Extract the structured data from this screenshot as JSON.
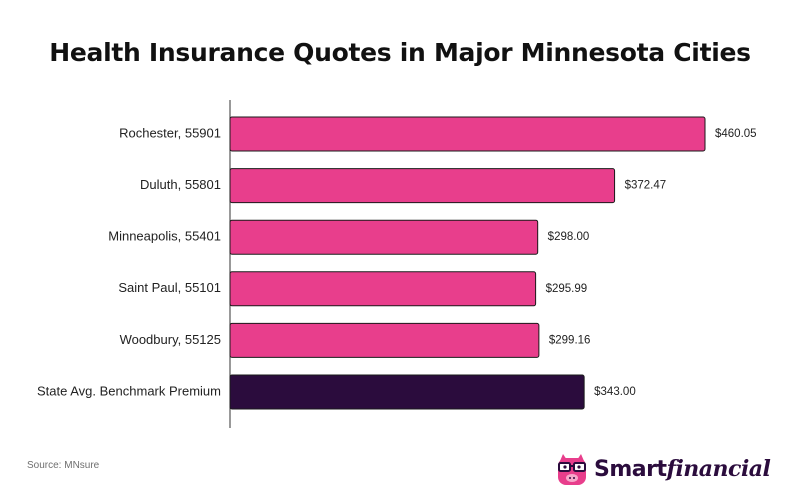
{
  "chart_data": {
    "type": "bar",
    "orientation": "horizontal",
    "title": "Health Insurance Quotes in Major Minnesota Cities",
    "categories": [
      "Rochester, 55901",
      "Duluth, 55801",
      "Minneapolis, 55401",
      "Saint Paul, 55101",
      "Woodbury, 55125",
      "State Avg. Benchmark Premium"
    ],
    "values": [
      460.05,
      372.47,
      298.0,
      295.99,
      299.16,
      343.0
    ],
    "value_labels": [
      "$460.05",
      "$372.47",
      "$298.00",
      "$295.99",
      "$299.16",
      "$343.00"
    ],
    "bar_colors": [
      "#e83e8c",
      "#e83e8c",
      "#e83e8c",
      "#e83e8c",
      "#e83e8c",
      "#2b0c3d"
    ],
    "xlim": [
      0,
      460.05
    ],
    "grid": false,
    "legend": false,
    "xlabel": "",
    "ylabel": ""
  },
  "footer": {
    "source": "Source: MNsure"
  },
  "brand": {
    "smart": "Smart",
    "financial": "financial",
    "icon": "pig-with-glasses-icon",
    "color": "#2b0c3d",
    "accent": "#e83e8c"
  }
}
